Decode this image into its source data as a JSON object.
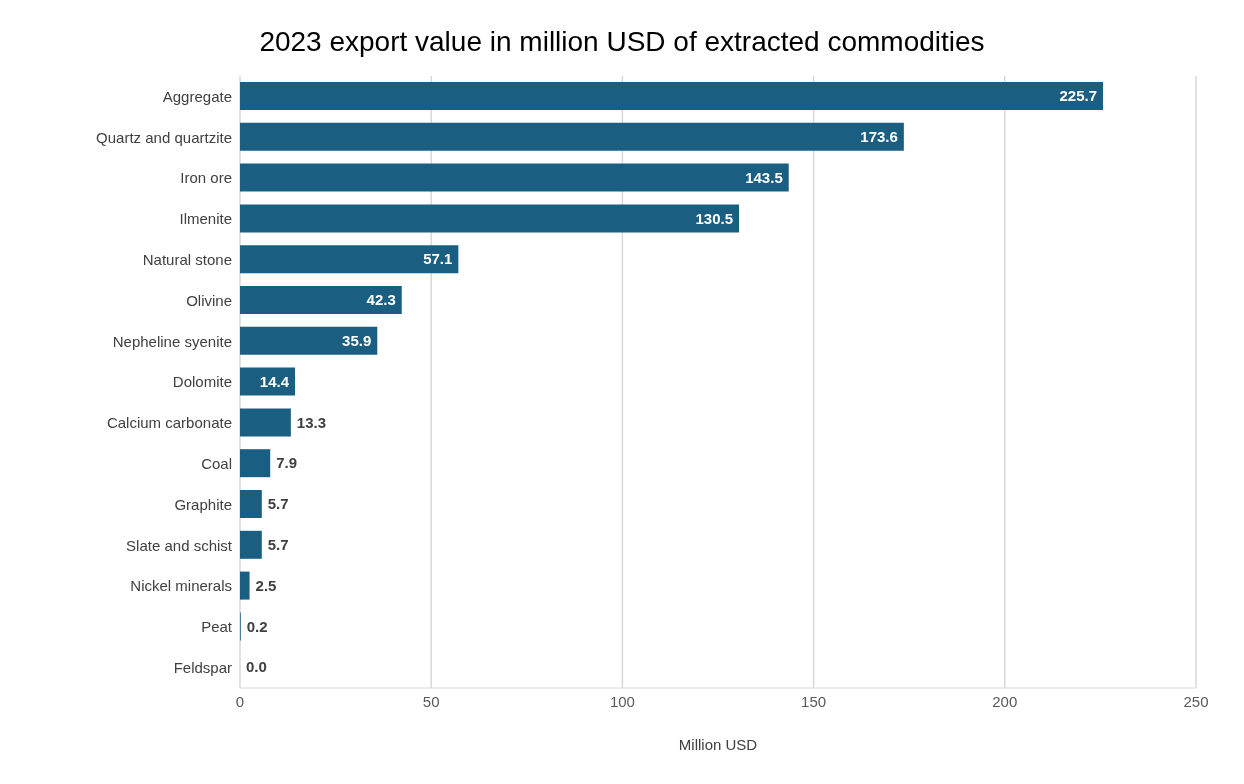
{
  "chart_data": {
    "type": "bar",
    "orientation": "horizontal",
    "title": "2023 export value in million USD of extracted commodities",
    "xlabel": "Million USD",
    "categories": [
      "Aggregate",
      "Quartz and quartzite",
      "Iron ore",
      "Ilmenite",
      "Natural stone",
      "Olivine",
      "Nepheline syenite",
      "Dolomite",
      "Calcium carbonate",
      "Coal",
      "Graphite",
      "Slate and schist",
      "Nickel minerals",
      "Peat",
      "Feldspar"
    ],
    "values": [
      225.7,
      173.6,
      143.5,
      130.5,
      57.1,
      42.3,
      35.9,
      14.4,
      13.3,
      7.9,
      5.7,
      5.7,
      2.5,
      0.2,
      0.0
    ],
    "value_labels": [
      "225.7",
      "173.6",
      "143.5",
      "130.5",
      "57.1",
      "42.3",
      "35.9",
      "14.4",
      "13.3",
      "7.9",
      "5.7",
      "5.7",
      "2.5",
      "0.2",
      "0.0"
    ],
    "color": "#1a5e82",
    "xlim": [
      0,
      250
    ],
    "xticks": [
      0,
      50,
      100,
      150,
      200,
      250
    ],
    "grid": "x"
  }
}
